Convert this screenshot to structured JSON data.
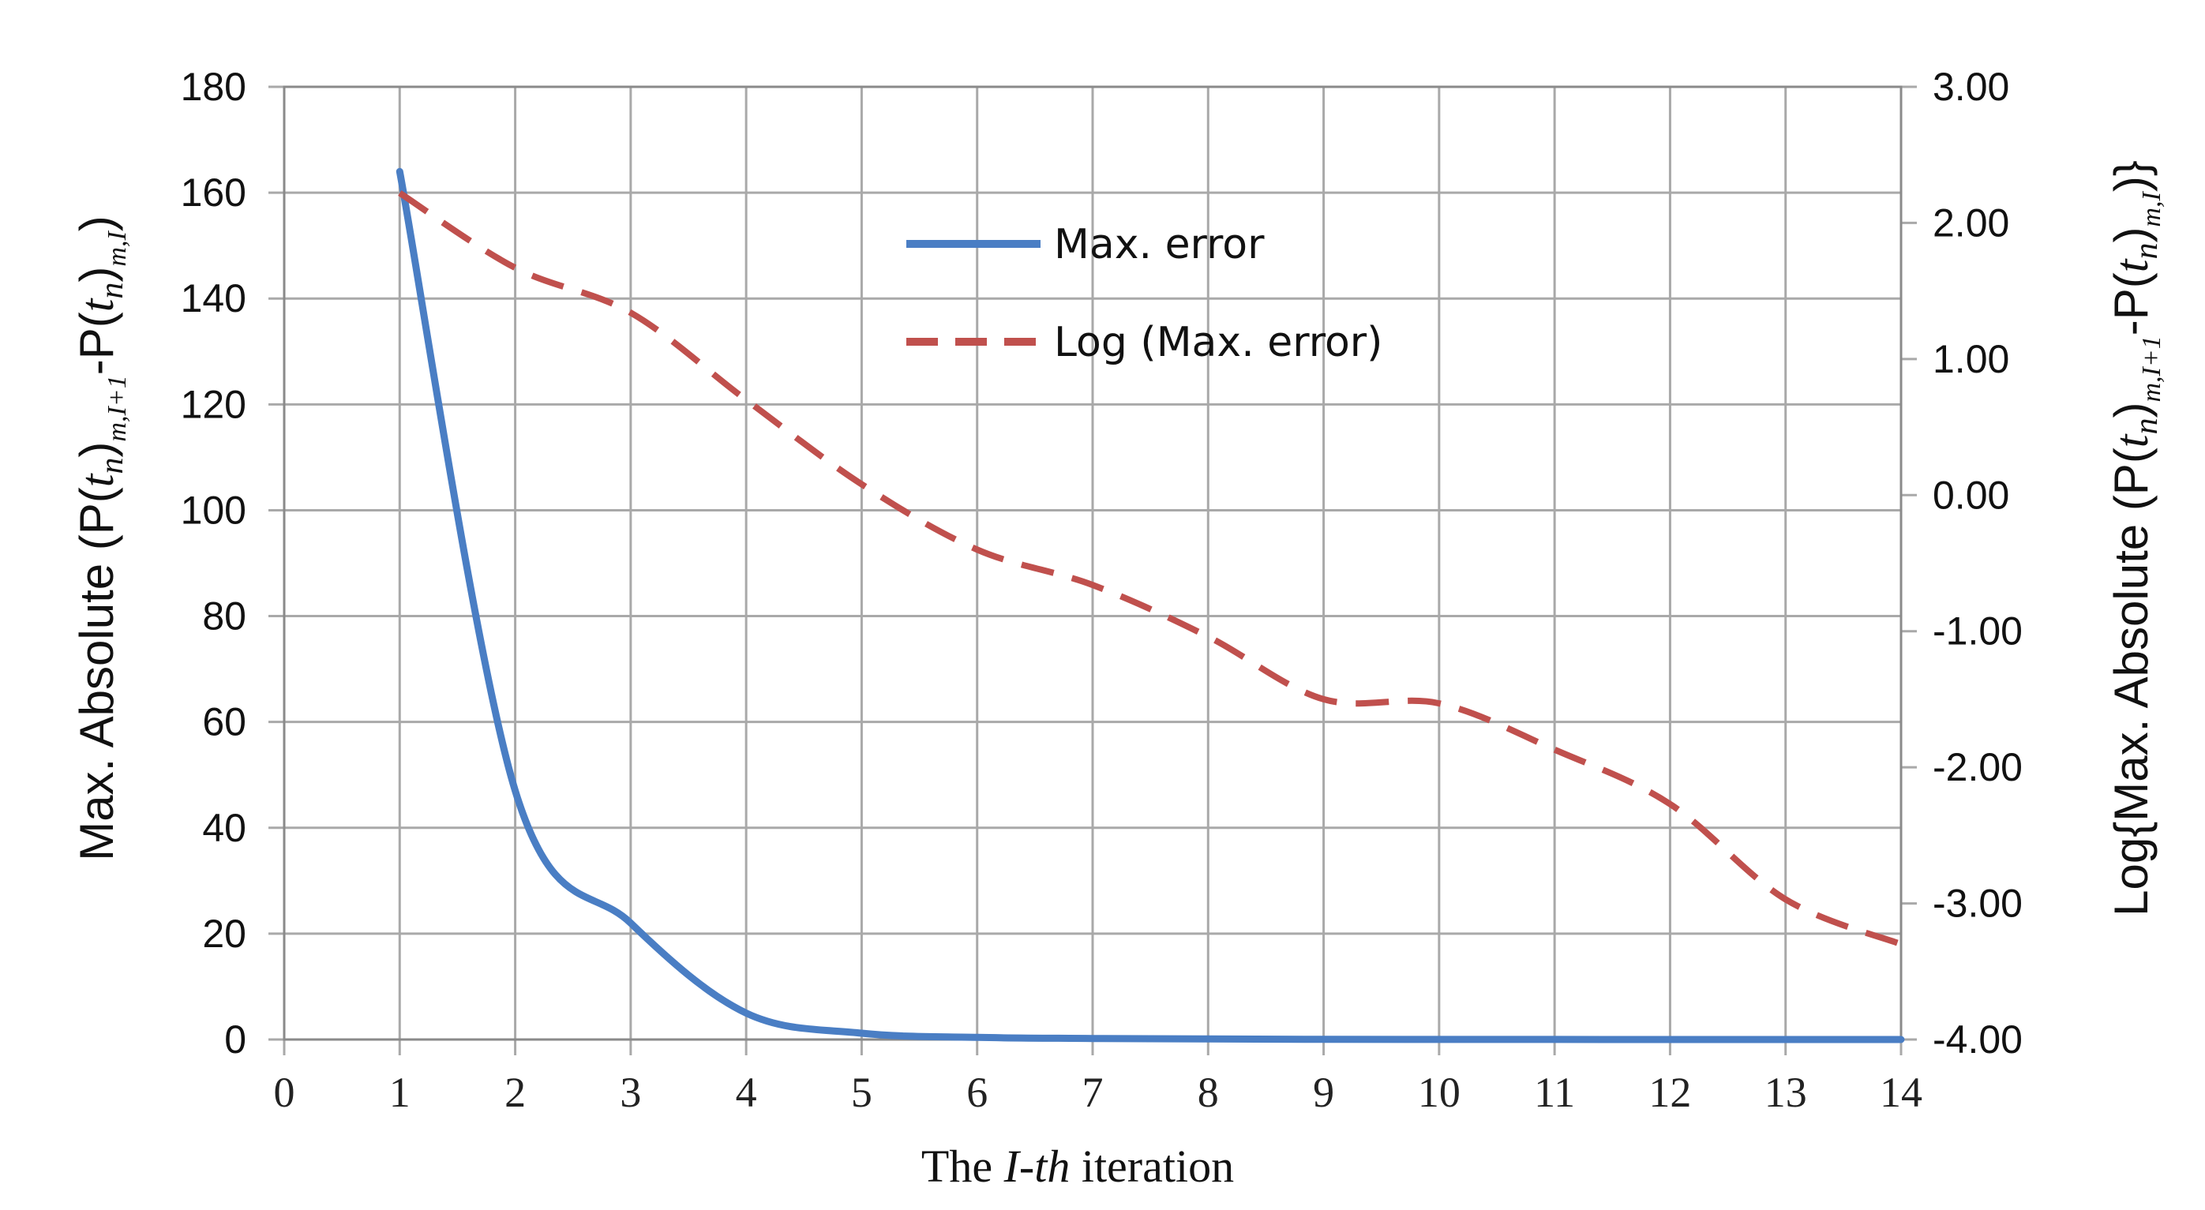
{
  "chart_data": {
    "type": "line",
    "title": "",
    "xlabel_parts": [
      "The ",
      "I-th",
      " iteration"
    ],
    "ylabel_left_parts": [
      "Max.  Absolute (P(",
      "t",
      "n",
      ")",
      "m,I+1",
      "-P(",
      "t",
      "n",
      ")",
      "m,I",
      ")"
    ],
    "ylabel_right_parts": [
      "Log{Max.  Absolute (P(",
      "t",
      "n",
      ")",
      "m,I+1",
      "-P(",
      "t",
      "n",
      ")",
      "m,I",
      ")}"
    ],
    "xlim": [
      0,
      14
    ],
    "ylim_left": [
      0,
      180
    ],
    "ylim_right": [
      -4,
      3
    ],
    "x_ticks": [
      "0",
      "1",
      "2",
      "3",
      "4",
      "5",
      "6",
      "7",
      "8",
      "9",
      "10",
      "11",
      "12",
      "13",
      "14"
    ],
    "y_ticks_left": [
      "0",
      "20",
      "40",
      "60",
      "80",
      "100",
      "120",
      "140",
      "160",
      "180"
    ],
    "y_ticks_right": [
      "-4.00",
      "-3.00",
      "-2.00",
      "-1.00",
      "0.00",
      "1.00",
      "2.00",
      "3.00"
    ],
    "grid": true,
    "legend_position": "top-center",
    "series": [
      {
        "name": "Max. error",
        "axis": "left",
        "color": "#4a7ec4",
        "style": "solid",
        "x": [
          1,
          2,
          3,
          4,
          5,
          6,
          7,
          8,
          9,
          10,
          11,
          12,
          13,
          14
        ],
        "y": [
          164,
          47,
          22,
          5,
          1.2,
          0.4,
          0.2,
          0.1,
          0.03,
          0.02,
          0.01,
          0.005,
          0.001,
          0.0005
        ]
      },
      {
        "name": "Log (Max. error)",
        "axis": "right",
        "color": "#c0504d",
        "style": "dashed",
        "x": [
          1,
          2,
          3,
          4,
          5,
          6,
          7,
          8,
          9,
          10,
          11,
          12,
          13,
          14
        ],
        "y": [
          2.22,
          1.67,
          1.34,
          0.7,
          0.08,
          -0.4,
          -0.66,
          -1.04,
          -1.5,
          -1.53,
          -1.87,
          -2.27,
          -2.97,
          -3.3
        ]
      }
    ]
  }
}
